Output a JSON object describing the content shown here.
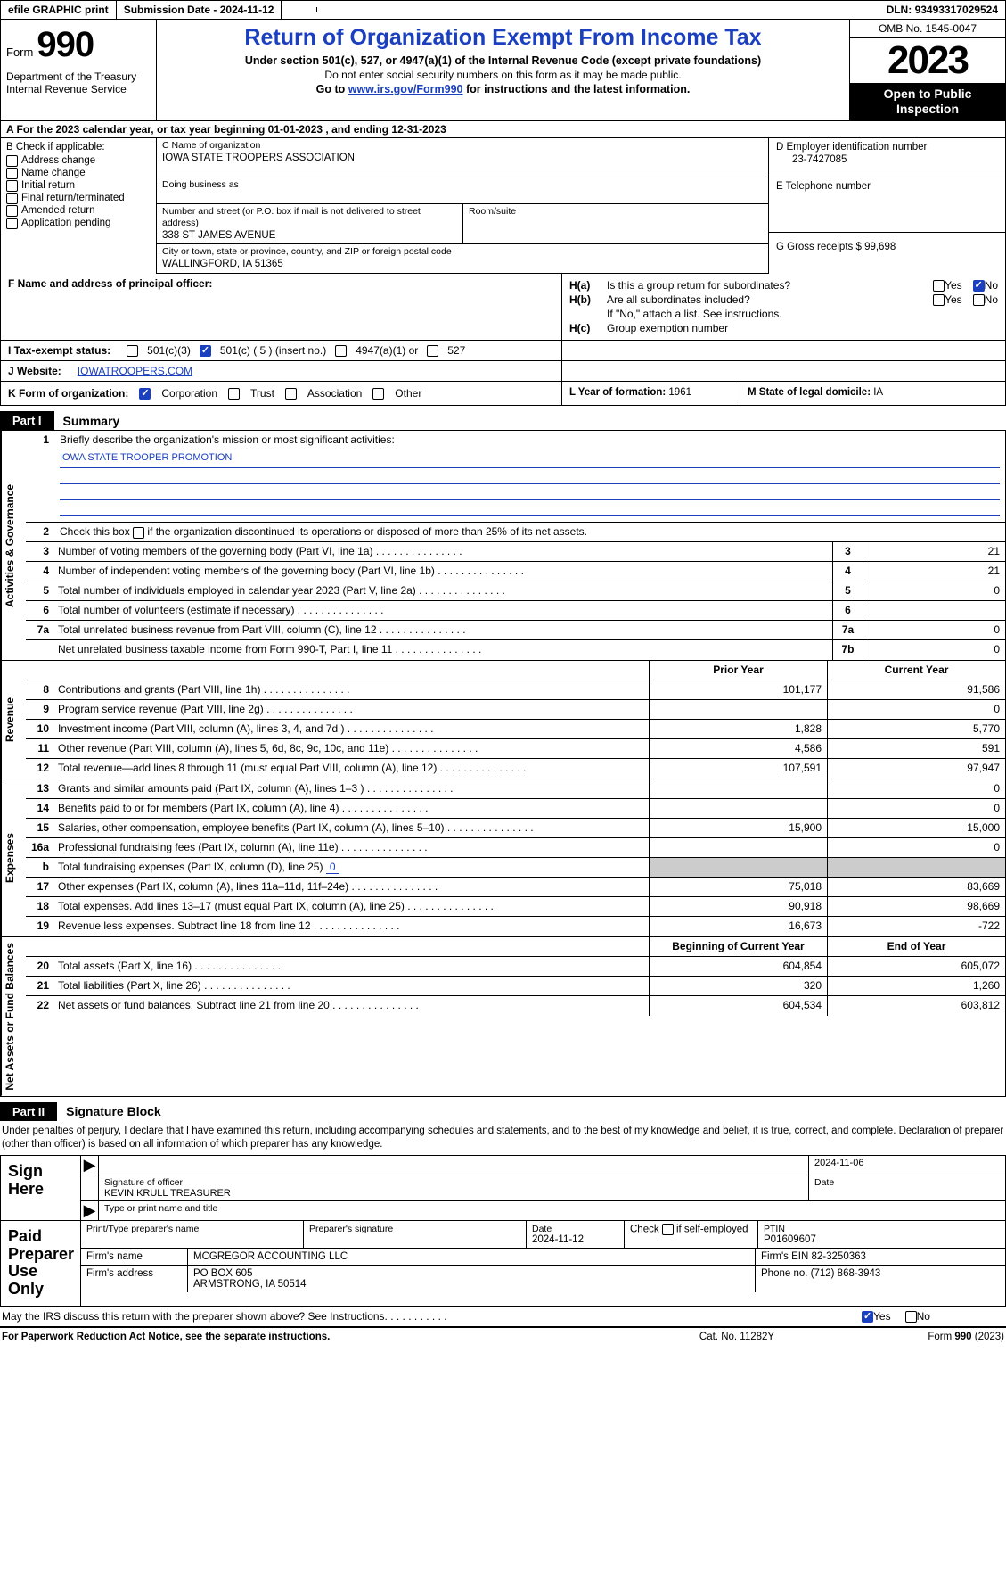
{
  "topbar": {
    "efile": "efile GRAPHIC print",
    "submission_label": "Submission Date - ",
    "submission_date": "2024-11-12",
    "dln_label": "DLN: ",
    "dln": "93493317029524"
  },
  "header": {
    "form_word": "Form",
    "form_number": "990",
    "dept1": "Department of the Treasury",
    "dept2": "Internal Revenue Service",
    "title": "Return of Organization Exempt From Income Tax",
    "sub1": "Under section 501(c), 527, or 4947(a)(1) of the Internal Revenue Code (except private foundations)",
    "sub2": "Do not enter social security numbers on this form as it may be made public.",
    "sub3_pre": "Go to ",
    "sub3_link": "www.irs.gov/Form990",
    "sub3_post": " for instructions and the latest information.",
    "omb": "OMB No. 1545-0047",
    "year": "2023",
    "open": "Open to Public Inspection"
  },
  "row_a": {
    "text_pre": "A For the 2023 calendar year, or tax year beginning ",
    "begin": "01-01-2023",
    "mid": " , and ending ",
    "end": "12-31-2023"
  },
  "col_b": {
    "label": "B Check if applicable:",
    "items": [
      "Address change",
      "Name change",
      "Initial return",
      "Final return/terminated",
      "Amended return",
      "Application pending"
    ]
  },
  "col_c": {
    "name_lbl": "C Name of organization",
    "name": "IOWA STATE TROOPERS ASSOCIATION",
    "dba_lbl": "Doing business as",
    "dba": "",
    "street_lbl": "Number and street (or P.O. box if mail is not delivered to street address)",
    "street": "338 ST JAMES AVENUE",
    "room_lbl": "Room/suite",
    "city_lbl": "City or town, state or province, country, and ZIP or foreign postal code",
    "city": "WALLINGFORD, IA  51365"
  },
  "col_d": {
    "ein_lbl": "D Employer identification number",
    "ein": "23-7427085",
    "tel_lbl": "E Telephone number",
    "tel": "",
    "gross_lbl": "G Gross receipts $ ",
    "gross": "99,698"
  },
  "col_f": {
    "label": "F  Name and address of principal officer:",
    "value": ""
  },
  "col_h": {
    "a_tag": "H(a)",
    "a_q": "Is this a group return for subordinates?",
    "a_yes": "Yes",
    "a_no": "No",
    "b_tag": "H(b)",
    "b_q": "Are all subordinates included?",
    "b_note": "If \"No,\" attach a list. See instructions.",
    "c_tag": "H(c)",
    "c_q": "Group exemption number"
  },
  "row_i": {
    "label": "I   Tax-exempt status:",
    "opt1": "501(c)(3)",
    "opt2": "501(c) ( 5 ) (insert no.)",
    "opt3": "4947(a)(1) or",
    "opt4": "527"
  },
  "row_j": {
    "label": "J   Website:",
    "value": "IOWATROOPERS.COM"
  },
  "row_k": {
    "label": "K Form of organization:",
    "opts": [
      "Corporation",
      "Trust",
      "Association",
      "Other"
    ]
  },
  "row_l": {
    "label": "L Year of formation: ",
    "value": "1961"
  },
  "row_m": {
    "label": "M State of legal domicile: ",
    "value": "IA"
  },
  "part1": {
    "tag": "Part I",
    "title": "Summary"
  },
  "sideLabels": {
    "gov": "Activities & Governance",
    "rev": "Revenue",
    "exp": "Expenses",
    "net": "Net Assets or Fund Balances"
  },
  "summary": {
    "line1_lbl": "Briefly describe the organization's mission or most significant activities:",
    "line1_val": "IOWA STATE TROOPER PROMOTION",
    "line2": "Check this box      if the organization discontinued its operations or disposed of more than 25% of its net assets.",
    "rows_gov": [
      {
        "n": "3",
        "d": "Number of voting members of the governing body (Part VI, line 1a)",
        "box": "3",
        "v": "21"
      },
      {
        "n": "4",
        "d": "Number of independent voting members of the governing body (Part VI, line 1b)",
        "box": "4",
        "v": "21"
      },
      {
        "n": "5",
        "d": "Total number of individuals employed in calendar year 2023 (Part V, line 2a)",
        "box": "5",
        "v": "0"
      },
      {
        "n": "6",
        "d": "Total number of volunteers (estimate if necessary)",
        "box": "6",
        "v": ""
      },
      {
        "n": "7a",
        "d": "Total unrelated business revenue from Part VIII, column (C), line 12",
        "box": "7a",
        "v": "0"
      },
      {
        "n": "",
        "d": "Net unrelated business taxable income from Form 990-T, Part I, line 11",
        "box": "7b",
        "v": "0"
      }
    ],
    "col_hdr_prior": "Prior Year",
    "col_hdr_curr": "Current Year",
    "rows_rev": [
      {
        "n": "8",
        "d": "Contributions and grants (Part VIII, line 1h)",
        "p": "101,177",
        "c": "91,586"
      },
      {
        "n": "9",
        "d": "Program service revenue (Part VIII, line 2g)",
        "p": "",
        "c": "0"
      },
      {
        "n": "10",
        "d": "Investment income (Part VIII, column (A), lines 3, 4, and 7d )",
        "p": "1,828",
        "c": "5,770"
      },
      {
        "n": "11",
        "d": "Other revenue (Part VIII, column (A), lines 5, 6d, 8c, 9c, 10c, and 11e)",
        "p": "4,586",
        "c": "591"
      },
      {
        "n": "12",
        "d": "Total revenue—add lines 8 through 11 (must equal Part VIII, column (A), line 12)",
        "p": "107,591",
        "c": "97,947"
      }
    ],
    "rows_exp": [
      {
        "n": "13",
        "d": "Grants and similar amounts paid (Part IX, column (A), lines 1–3 )",
        "p": "",
        "c": "0"
      },
      {
        "n": "14",
        "d": "Benefits paid to or for members (Part IX, column (A), line 4)",
        "p": "",
        "c": "0"
      },
      {
        "n": "15",
        "d": "Salaries, other compensation, employee benefits (Part IX, column (A), lines 5–10)",
        "p": "15,900",
        "c": "15,000"
      },
      {
        "n": "16a",
        "d": "Professional fundraising fees (Part IX, column (A), line 11e)",
        "p": "",
        "c": "0"
      },
      {
        "n": "b",
        "d": "Total fundraising expenses (Part IX, column (D), line 25) ",
        "p": "SHADE",
        "c": "SHADE",
        "fund": "0"
      },
      {
        "n": "17",
        "d": "Other expenses (Part IX, column (A), lines 11a–11d, 11f–24e)",
        "p": "75,018",
        "c": "83,669"
      },
      {
        "n": "18",
        "d": "Total expenses. Add lines 13–17 (must equal Part IX, column (A), line 25)",
        "p": "90,918",
        "c": "98,669"
      },
      {
        "n": "19",
        "d": "Revenue less expenses. Subtract line 18 from line 12",
        "p": "16,673",
        "c": "-722"
      }
    ],
    "col_hdr_begin": "Beginning of Current Year",
    "col_hdr_end": "End of Year",
    "rows_net": [
      {
        "n": "20",
        "d": "Total assets (Part X, line 16)",
        "p": "604,854",
        "c": "605,072"
      },
      {
        "n": "21",
        "d": "Total liabilities (Part X, line 26)",
        "p": "320",
        "c": "1,260"
      },
      {
        "n": "22",
        "d": "Net assets or fund balances. Subtract line 21 from line 20",
        "p": "604,534",
        "c": "603,812"
      }
    ]
  },
  "part2": {
    "tag": "Part II",
    "title": "Signature Block"
  },
  "sig": {
    "intro": "Under penalties of perjury, I declare that I have examined this return, including accompanying schedules and statements, and to the best of my knowledge and belief, it is true, correct, and complete. Declaration of preparer (other than officer) is based on all information of which preparer has any knowledge.",
    "sign_here": "Sign Here",
    "sig_officer_lbl": "Signature of officer",
    "date_lbl": "Date",
    "sig_date": "2024-11-06",
    "officer": "KEVIN KRULL TREASURER",
    "type_lbl": "Type or print name and title",
    "paid": "Paid Preparer Use Only",
    "prep_name_lbl": "Print/Type preparer's name",
    "prep_sig_lbl": "Preparer's signature",
    "prep_date_lbl": "Date",
    "prep_date": "2024-11-12",
    "self_emp": "Check       if self-employed",
    "ptin_lbl": "PTIN",
    "ptin": "P01609607",
    "firm_name_lbl": "Firm's name",
    "firm_name": "MCGREGOR ACCOUNTING LLC",
    "firm_ein_lbl": "Firm's EIN",
    "firm_ein": "82-3250363",
    "firm_addr_lbl": "Firm's address",
    "firm_addr1": "PO BOX 605",
    "firm_addr2": "ARMSTRONG, IA  50514",
    "phone_lbl": "Phone no.",
    "phone": "(712) 868-3943",
    "discuss": "May the IRS discuss this return with the preparer shown above? See Instructions.",
    "yes": "Yes",
    "no": "No"
  },
  "footer": {
    "left": "For Paperwork Reduction Act Notice, see the separate instructions.",
    "mid": "Cat. No. 11282Y",
    "right_pre": "Form ",
    "right_form": "990",
    "right_post": " (2023)"
  }
}
